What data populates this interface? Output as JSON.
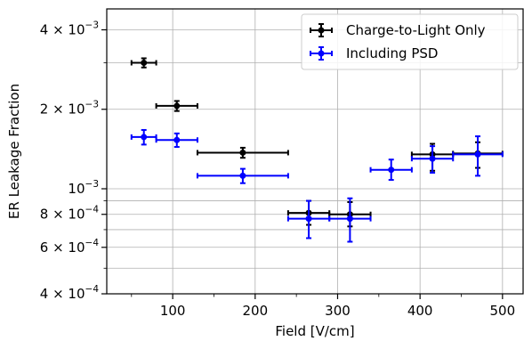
{
  "chart_data": {
    "type": "scatter",
    "xlabel": "Field [V/cm]",
    "ylabel": "ER Leakage Fraction",
    "xlim": [
      20,
      525
    ],
    "ylim": [
      0.0004,
      0.0048
    ],
    "y_scale": "log",
    "grid": true,
    "legend_position": "top-right",
    "x_ticks": [
      {
        "value": 100,
        "label": "100"
      },
      {
        "value": 200,
        "label": "200"
      },
      {
        "value": 300,
        "label": "300"
      },
      {
        "value": 400,
        "label": "400"
      },
      {
        "value": 500,
        "label": "500"
      }
    ],
    "y_ticks_major": [
      {
        "value": 0.004,
        "mant": "4",
        "exp": "−3"
      },
      {
        "value": 0.002,
        "mant": "2",
        "exp": "−3"
      },
      {
        "value": 0.001,
        "mant": "",
        "exp": "−3"
      },
      {
        "value": 0.0008,
        "mant": "8",
        "exp": "−4"
      },
      {
        "value": 0.0006,
        "mant": "6",
        "exp": "−4"
      },
      {
        "value": 0.0004,
        "mant": "4",
        "exp": "−4"
      }
    ],
    "y_ticks_minor": [
      0.003,
      0.0009,
      0.0007,
      0.0005
    ],
    "series": [
      {
        "name": "Charge-to-Light Only",
        "color": "#000000",
        "points": [
          {
            "x": 65,
            "y": 0.003,
            "xerr": 15,
            "yerr_low": 0.00012,
            "yerr_high": 0.00012
          },
          {
            "x": 105,
            "y": 0.00206,
            "xerr": 25,
            "yerr_low": 9e-05,
            "yerr_high": 9e-05
          },
          {
            "x": 185,
            "y": 0.00137,
            "xerr": 55,
            "yerr_low": 6e-05,
            "yerr_high": 6e-05
          },
          {
            "x": 265,
            "y": 0.00081,
            "xerr": 25,
            "yerr_low": 8e-05,
            "yerr_high": 9e-05
          },
          {
            "x": 315,
            "y": 0.0008,
            "xerr": 25,
            "yerr_low": 8e-05,
            "yerr_high": 9e-05
          },
          {
            "x": 415,
            "y": 0.00135,
            "xerr": 25,
            "yerr_low": 0.00018,
            "yerr_high": 0.00013
          },
          {
            "x": 470,
            "y": 0.00136,
            "xerr": 30,
            "yerr_low": 0.00016,
            "yerr_high": 0.00014
          }
        ]
      },
      {
        "name": "Including PSD",
        "color": "#0000ff",
        "points": [
          {
            "x": 65,
            "y": 0.00157,
            "xerr": 15,
            "yerr_low": 0.0001,
            "yerr_high": 0.0001
          },
          {
            "x": 105,
            "y": 0.00153,
            "xerr": 25,
            "yerr_low": 9e-05,
            "yerr_high": 9e-05
          },
          {
            "x": 185,
            "y": 0.00112,
            "xerr": 55,
            "yerr_low": 7e-05,
            "yerr_high": 7e-05
          },
          {
            "x": 265,
            "y": 0.00077,
            "xerr": 25,
            "yerr_low": 0.00012,
            "yerr_high": 0.00013
          },
          {
            "x": 315,
            "y": 0.00077,
            "xerr": 25,
            "yerr_low": 0.00014,
            "yerr_high": 0.00015
          },
          {
            "x": 365,
            "y": 0.00118,
            "xerr": 25,
            "yerr_low": 0.0001,
            "yerr_high": 0.00011
          },
          {
            "x": 415,
            "y": 0.0013,
            "xerr": 25,
            "yerr_low": 0.00015,
            "yerr_high": 0.00015
          },
          {
            "x": 470,
            "y": 0.00135,
            "xerr": 30,
            "yerr_low": 0.00023,
            "yerr_high": 0.00023
          }
        ]
      }
    ]
  }
}
